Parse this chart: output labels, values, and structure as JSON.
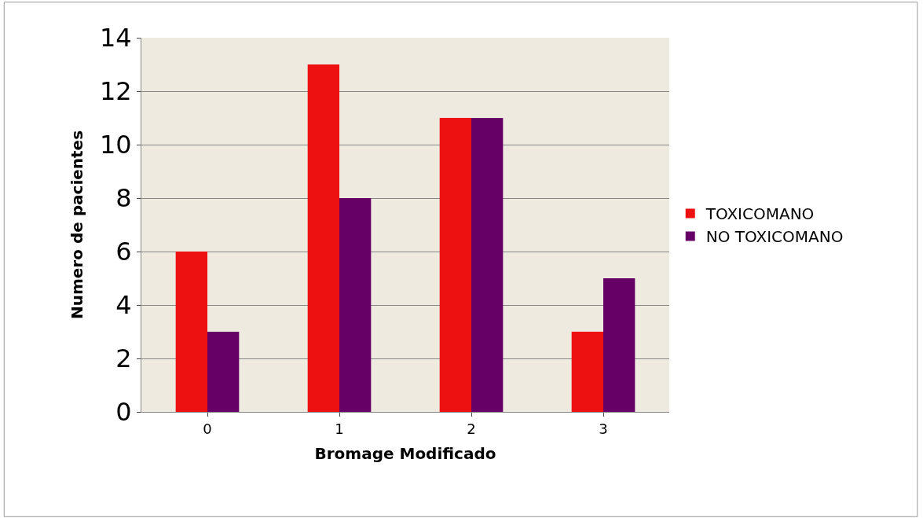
{
  "chart_data": {
    "type": "bar",
    "xlabel": "Bromage Modificado",
    "ylabel": "Numero de pacientes",
    "categories": [
      "0",
      "1",
      "2",
      "3"
    ],
    "series": [
      {
        "name": "TOXICOMANO",
        "color": "#ee1111",
        "values": [
          6,
          13,
          11,
          3
        ]
      },
      {
        "name": "NO TOXICOMANO",
        "color": "#660066",
        "values": [
          3,
          8,
          11,
          5
        ]
      }
    ],
    "ylim": [
      0,
      14
    ],
    "yticks": [
      0,
      2,
      4,
      6,
      8,
      10,
      12,
      14
    ],
    "grid": "y",
    "legend": "right"
  }
}
